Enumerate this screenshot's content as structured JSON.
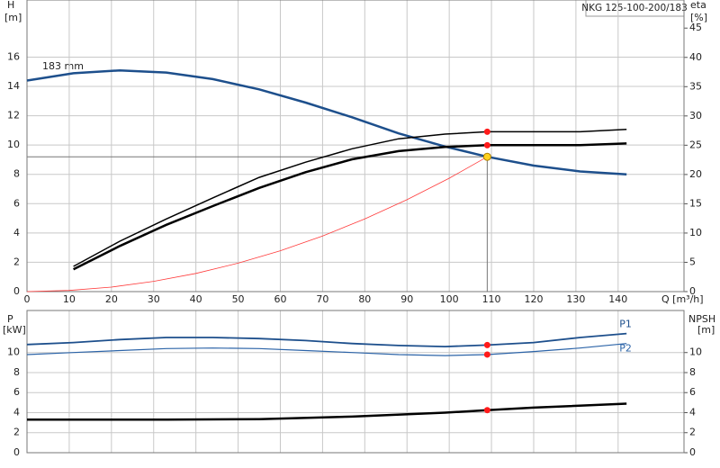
{
  "chart_data": [
    {
      "type": "line",
      "title": "NKG 125-100-200/183",
      "annotation": "183 mm",
      "xlabel": "Q [m³/h]",
      "ylabel": "H",
      "yunit": "[m]",
      "y2label": "eta",
      "y2unit": "[%]",
      "xlim": [
        0,
        155.6
      ],
      "xticks": [
        0,
        10,
        20,
        30,
        40,
        50,
        60,
        70,
        80,
        90,
        100,
        110,
        120,
        130,
        140
      ],
      "ylim": [
        0,
        19.9
      ],
      "yticks": [
        0,
        2,
        4,
        6,
        8,
        10,
        12,
        14,
        16
      ],
      "y2lim": [
        0,
        49.8
      ],
      "y2ticks": [
        0,
        5,
        10,
        15,
        20,
        25,
        30,
        35,
        40,
        45
      ],
      "grid": true,
      "series": [
        {
          "color": "#1d4f8c",
          "line_width": 2.5,
          "x": [
            0,
            11,
            22,
            33,
            44,
            55,
            66,
            77,
            88,
            99,
            109,
            120,
            131,
            142
          ],
          "values": [
            14.4,
            14.9,
            15.1,
            14.95,
            14.5,
            13.8,
            12.9,
            11.9,
            10.8,
            9.9,
            9.2,
            8.6,
            8.2,
            8.0
          ]
        },
        {
          "color": "#000000",
          "line_width": 1.5,
          "axis": "y2",
          "x": [
            11,
            22,
            33,
            44,
            55,
            66,
            77,
            88,
            99,
            109,
            120,
            131,
            142
          ],
          "values": [
            4.3,
            8.6,
            12.4,
            16,
            19.5,
            22.1,
            24.4,
            26.1,
            26.9,
            27.3,
            27.3,
            27.3,
            27.7
          ]
        },
        {
          "color": "#000000",
          "line_width": 2.5,
          "axis": "y2",
          "x": [
            11,
            22,
            33,
            44,
            55,
            66,
            77,
            88,
            99,
            109,
            120,
            131,
            142
          ],
          "values": [
            3.8,
            7.8,
            11.4,
            14.6,
            17.7,
            20.4,
            22.6,
            24,
            24.7,
            25,
            25,
            25,
            25.3
          ]
        },
        {
          "color": "#ff3b3b",
          "line_width": 0.8,
          "x": [
            0,
            10,
            20,
            30,
            40,
            50,
            60,
            70,
            80,
            90,
            100,
            109
          ],
          "values": [
            0,
            0.08,
            0.31,
            0.7,
            1.24,
            1.94,
            2.79,
            3.79,
            4.96,
            6.27,
            7.74,
            9.2
          ]
        }
      ],
      "duty_point": {
        "x": 109,
        "y": 9.2,
        "color": "#ffd21f"
      },
      "markers": [
        {
          "x": 109,
          "y": 27.3,
          "axis": "y2",
          "color": "#ff1a1a"
        },
        {
          "x": 109,
          "y": 25,
          "axis": "y2",
          "color": "#ff1a1a"
        }
      ]
    },
    {
      "type": "line",
      "ylabel": "P",
      "yunit": "[kW]",
      "y2label": "NPSH",
      "y2unit": "[m]",
      "xlim": [
        0,
        155.6
      ],
      "ylim": [
        0,
        14.2
      ],
      "yticks": [
        0,
        2,
        4,
        6,
        8,
        10
      ],
      "y2lim": [
        0,
        14.2
      ],
      "y2ticks": [
        0,
        2,
        4,
        6,
        8,
        10
      ],
      "grid": true,
      "series": [
        {
          "name": "P1",
          "color": "#1d4f8c",
          "line_width": 1.8,
          "x": [
            0,
            11,
            22,
            33,
            44,
            55,
            66,
            77,
            88,
            99,
            109,
            120,
            131,
            142
          ],
          "values": [
            10.8,
            11,
            11.3,
            11.5,
            11.5,
            11.4,
            11.2,
            10.9,
            10.7,
            10.6,
            10.75,
            11,
            11.5,
            11.9
          ]
        },
        {
          "name": "P2",
          "color": "#2c64a8",
          "line_width": 1.2,
          "x": [
            0,
            11,
            22,
            33,
            44,
            55,
            66,
            77,
            88,
            99,
            109,
            120,
            131,
            142
          ],
          "values": [
            9.8,
            10,
            10.2,
            10.4,
            10.45,
            10.4,
            10.2,
            10,
            9.8,
            9.7,
            9.8,
            10.1,
            10.45,
            10.9
          ]
        },
        {
          "color": "#000000",
          "line_width": 2.5,
          "axis": "y2",
          "x": [
            0,
            11,
            33,
            55,
            77,
            99,
            109,
            120,
            142
          ],
          "values": [
            3.3,
            3.3,
            3.3,
            3.35,
            3.6,
            4.0,
            4.25,
            4.5,
            4.9
          ]
        }
      ],
      "markers": [
        {
          "x": 109,
          "y": 10.75,
          "color": "#ff1a1a"
        },
        {
          "x": 109,
          "y": 9.8,
          "color": "#ff1a1a"
        },
        {
          "x": 109,
          "y": 4.25,
          "axis": "y2",
          "color": "#ff1a1a"
        }
      ]
    }
  ]
}
